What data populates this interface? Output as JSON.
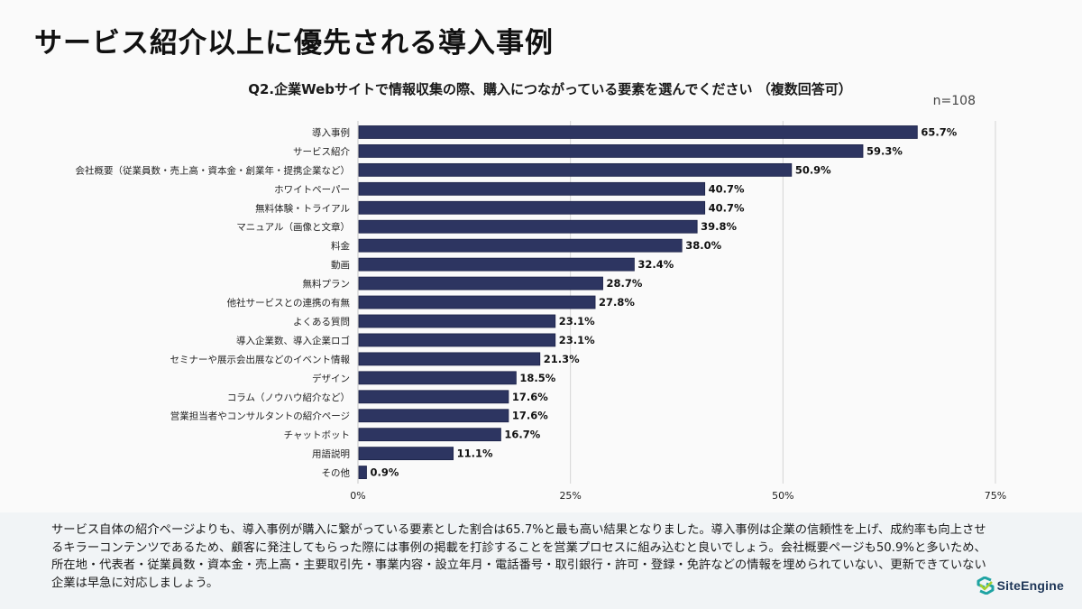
{
  "page": {
    "title": "サービス紹介以上に優先される導入事例",
    "subtitle": "Q2.企業Webサイトで情報収集の際、購入につながっている要素を選んでください （複数回答可）",
    "sample_size": "n=108"
  },
  "colors": {
    "bar": "#2d3561",
    "bar_edge": "#1b2147",
    "grid": "#d4d4d4",
    "note_bg": "#f1f4f6",
    "logo_teal": "#1fa3a3",
    "logo_green": "#a5cf2c"
  },
  "chart_data": {
    "type": "bar",
    "orientation": "horizontal",
    "title": "Q2.企業Webサイトで情報収集の際、購入につながっている要素を選んでください （複数回答可）",
    "xlabel": "",
    "ylabel": "",
    "xlim": [
      0,
      75
    ],
    "x_ticks": [
      0,
      25,
      50,
      75
    ],
    "x_tick_labels": [
      "0%",
      "25%",
      "50%",
      "75%"
    ],
    "grid": true,
    "legend": "none",
    "categories": [
      "導入事例",
      "サービス紹介",
      "会社概要（従業員数・売上高・資本金・創業年・提携企業など）",
      "ホワイトペーパー",
      "無料体験・トライアル",
      "マニュアル（画像と文章）",
      "料金",
      "動画",
      "無料プラン",
      "他社サービスとの連携の有無",
      "よくある質問",
      "導入企業数、導入企業ロゴ",
      "セミナーや展示会出展などのイベント情報",
      "デザイン",
      "コラム（ノウハウ紹介など）",
      "営業担当者やコンサルタントの紹介ページ",
      "チャットボット",
      "用語説明",
      "その他"
    ],
    "values": [
      65.7,
      59.3,
      50.9,
      40.7,
      40.7,
      39.8,
      38.0,
      32.4,
      28.7,
      27.8,
      23.1,
      23.1,
      21.3,
      18.5,
      17.6,
      17.6,
      16.7,
      11.1,
      0.9
    ],
    "value_labels": [
      "65.7%",
      "59.3%",
      "50.9%",
      "40.7%",
      "40.7%",
      "39.8%",
      "38.0%",
      "32.4%",
      "28.7%",
      "27.8%",
      "23.1%",
      "23.1%",
      "21.3%",
      "18.5%",
      "17.6%",
      "17.6%",
      "16.7%",
      "11.1%",
      "0.9%"
    ],
    "unit": "%"
  },
  "note": {
    "text": "サービス自体の紹介ページよりも、導入事例が購入に繋がっている要素とした割合は65.7%と最も高い結果となりました。導入事例は企業の信頼性を上げ、成約率も向上させるキラーコンテンツであるため、顧客に発注してもらった際には事例の掲載を打診することを営業プロセスに組み込むと良いでしょう。会社概要ページも50.9%と多いため、所在地・代表者・従業員数・資本金・売上高・主要取引先・事業内容・設立年月・電話番号・取引銀行・許可・登録・免許などの情報を埋められていない、更新できていない企業は早急に対応しましょう。"
  },
  "logo": {
    "icon": "siteengine-logo-icon",
    "text": "SiteEngine"
  }
}
